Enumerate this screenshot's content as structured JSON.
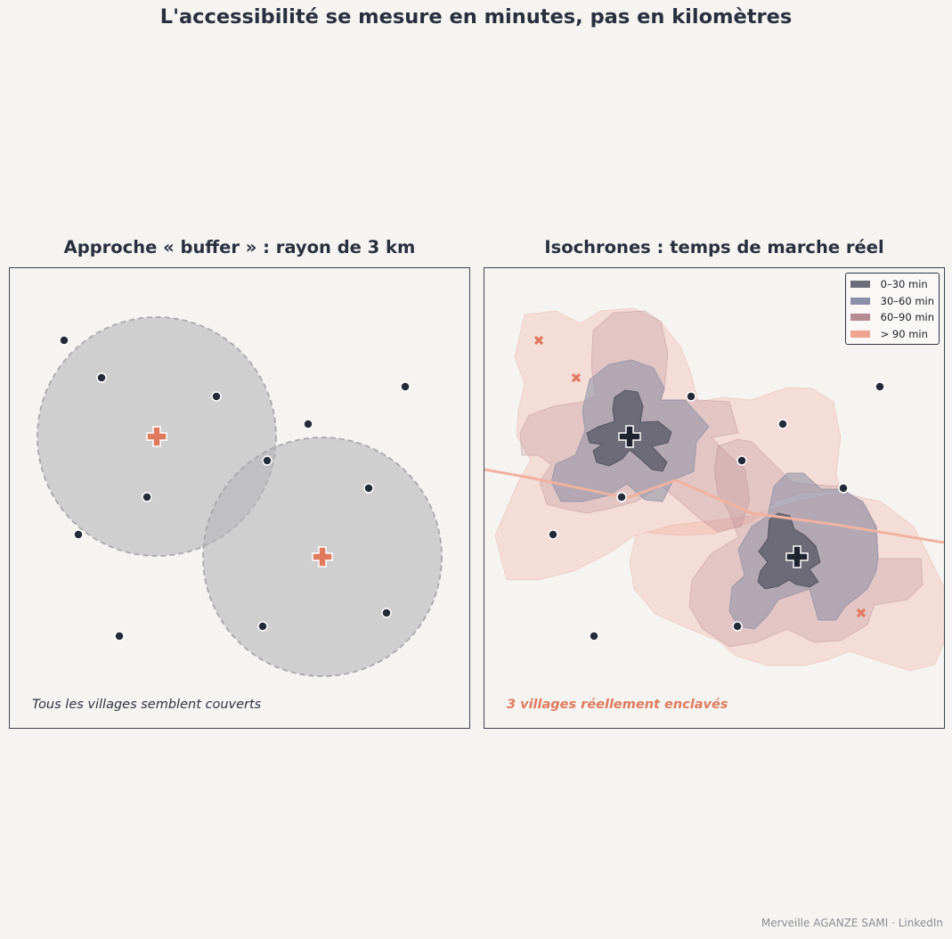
{
  "title": "L'accessibilité se mesure en minutes, pas en kilomètres",
  "left_panel": {
    "title": "Approche « buffer » : rayon de 3 km",
    "caption": "Tous les villages semblent couverts",
    "buffer_radius_km": 3
  },
  "right_panel": {
    "title": "Isochrones : temps de marche réel",
    "caption": "3 villages réellement enclavés",
    "legend": [
      {
        "label": "0–30 min",
        "color": "#6b6d7a"
      },
      {
        "label": "30–60 min",
        "color": "#8a8ea6"
      },
      {
        "label": "60–90 min",
        "color": "#b88a92"
      },
      {
        "label": "> 90 min",
        "color": "#f0a38e"
      }
    ]
  },
  "colors": {
    "health_center": "#e07a5f",
    "village": "#232a38",
    "buffer_fill": "#b5b5b9",
    "road": "#f0b2a0",
    "background": "#f5f4f1"
  },
  "credit": "Merveille AGANZE SAMI · LinkedIn"
}
